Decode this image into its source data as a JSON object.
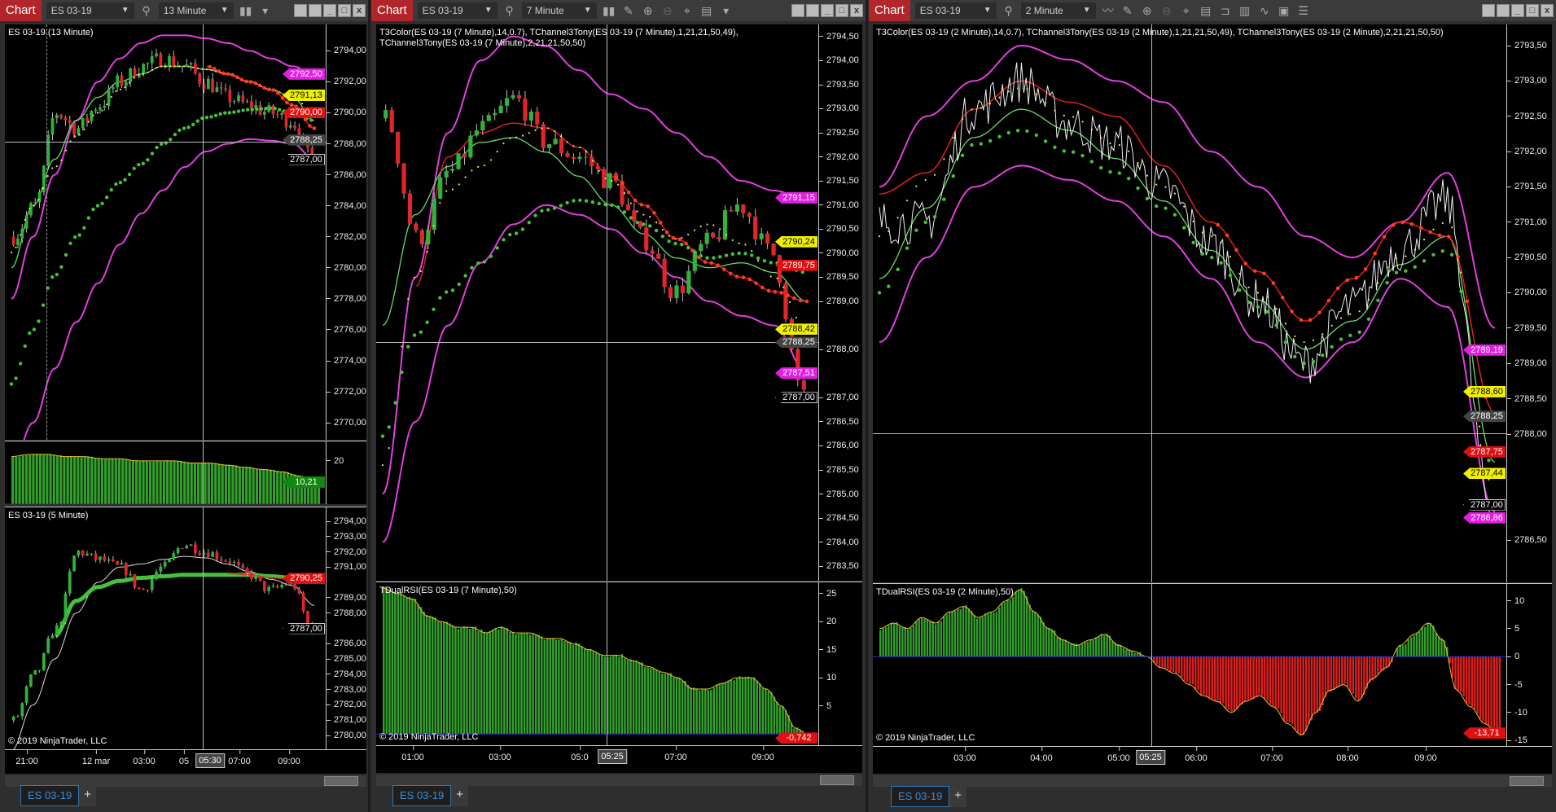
{
  "colors": {
    "up": "#2fb33a",
    "down": "#e0262b",
    "band": "#e040e0",
    "t3": "#e8e86a",
    "chan": "#44c23a",
    "redline": "#e02020",
    "ma": "#66dd66",
    "hist_pos": "#33a02c",
    "hist_neg": "#e02020",
    "chart_btn": "#b2252a"
  },
  "windows": [
    {
      "chart_label": "Chart",
      "instrument": "ES 03-19",
      "interval": "13 Minute",
      "icons": [
        "search-icon",
        "bar-style-icon",
        "dropdown-icon"
      ],
      "tab": "ES 03-19",
      "cursor_time": "05:30",
      "time_ticks": [
        "21:00",
        "12 mar",
        "03:00",
        "05",
        "07:00",
        "09:00"
      ]
    },
    {
      "chart_label": "Chart",
      "instrument": "ES 03-19",
      "interval": "7 Minute",
      "icons": [
        "search-icon",
        "bar-style-icon",
        "pencil-icon",
        "zoom-in-icon",
        "zoom-out-icon",
        "crosshair-icon",
        "properties-icon",
        "dropdown-icon"
      ],
      "tab": "ES 03-19",
      "cursor_time": "05:25",
      "time_ticks": [
        "01:00",
        "03:00",
        "05:0",
        "07:00",
        "09:00"
      ]
    },
    {
      "chart_label": "Chart",
      "instrument": "ES 03-19",
      "interval": "2 Minute",
      "icons": [
        "search-icon",
        "line-style-icon",
        "pencil-icon",
        "zoom-in-icon",
        "zoom-out-icon",
        "crosshair-icon",
        "properties-icon",
        "template-icon",
        "indicators-icon",
        "strategies-icon",
        "data-box-icon",
        "list-icon"
      ],
      "tab": "ES 03-19",
      "cursor_time": "05:25",
      "time_ticks": [
        "03:00",
        "04:00",
        "05:00",
        "06:00",
        "07:00",
        "08:00",
        "09:00"
      ]
    }
  ],
  "copyright": "© 2019 NinjaTrader, LLC",
  "chart_data": [
    {
      "id": "c1",
      "type": "candlestick",
      "title": "ES 03-19 (13 Minute)",
      "ylim": [
        2768.9,
        2795.7
      ],
      "yticks": [
        "2794,00",
        "2792,00",
        "2790,00",
        "2788,00",
        "2786,00",
        "2784,00",
        "2782,00",
        "2780,00",
        "2778,00",
        "2776,00",
        "2774,00",
        "2772,00",
        "2770,00"
      ],
      "tags": [
        {
          "v": 2792.5,
          "text": "2792,50",
          "bg": "#e020e0",
          "fg": "#fff"
        },
        {
          "v": 2791.13,
          "text": "2791,13",
          "bg": "#f0f000",
          "fg": "#000"
        },
        {
          "v": 2790.0,
          "text": "2790,00",
          "bg": "#e01010",
          "fg": "#fff"
        },
        {
          "v": 2788.25,
          "text": "2788,25",
          "bg": "#444",
          "fg": "#fff"
        },
        {
          "v": 2787.0,
          "text": "2787,00",
          "bg": "#000",
          "fg": "#fff"
        }
      ],
      "close": [
        2782,
        2784,
        2790,
        2789,
        2790.5,
        2792,
        2793,
        2793.5,
        2793,
        2792,
        2791,
        2790.5,
        2790,
        2789.5,
        2787
      ],
      "upper": [
        2778,
        2782,
        2786,
        2789.5,
        2792,
        2793.5,
        2794.5,
        2795,
        2795,
        2794.8,
        2794.5,
        2794,
        2793.5,
        2793,
        2792.5
      ],
      "lower": [
        2767,
        2770,
        2773.5,
        2776.5,
        2779,
        2781.5,
        2783.5,
        2785,
        2786.5,
        2787.5,
        2788,
        2788.3,
        2788.2,
        2788,
        2787
      ],
      "chan": [
        2772.5,
        2776,
        2779.5,
        2782,
        2784,
        2785.5,
        2786.7,
        2788,
        2789,
        2789.7,
        2790,
        2790.2,
        2790.3,
        2790,
        2789.5
      ],
      "t3": [
        2781,
        2784,
        2786.5,
        2788.5,
        2790,
        2791.5,
        2792.5,
        2793,
        2793,
        2792.8,
        2792.5,
        2792,
        2791.5,
        2791,
        2790
      ],
      "ma": [
        2780,
        2784,
        2787,
        2789.5,
        2791,
        2792,
        2792.5,
        2793,
        2793,
        2792.8,
        2792.5,
        2792,
        2791.5,
        2791,
        2789.5
      ],
      "red": [
        null,
        null,
        null,
        null,
        null,
        null,
        null,
        null,
        null,
        2793,
        2792.5,
        2792,
        2791.5,
        2790.5,
        2789
      ]
    },
    {
      "id": "i1",
      "type": "histogram",
      "ylim": [
        0,
        29
      ],
      "yticks": [
        "20"
      ],
      "tag": {
        "v": 10.21,
        "text": "10,21",
        "bg": "#118811",
        "fg": "#fff"
      },
      "values": [
        22,
        23,
        23,
        22,
        22,
        21,
        21,
        20,
        20,
        20,
        19,
        19,
        18,
        17,
        16,
        15,
        13,
        10
      ]
    },
    {
      "id": "c1b",
      "type": "candlestick",
      "title": "ES 03-19 (5 Minute)",
      "ylim": [
        2779.1,
        2794.9
      ],
      "yticks": [
        "2794,00",
        "2793,00",
        "2792,00",
        "2791,00",
        "2789,00",
        "2788,00",
        "2786,00",
        "2785,00",
        "2784,00",
        "2783,00",
        "2782,00",
        "2781,00",
        "2780,00"
      ],
      "tags": [
        {
          "v": 2790.25,
          "text": "2790,25",
          "bg": "#e01010",
          "fg": "#fff"
        },
        {
          "v": 2787.0,
          "text": "2787,00",
          "bg": "#000",
          "fg": "#fff"
        }
      ],
      "close": [
        2781,
        2784,
        2787,
        2792,
        2791.5,
        2791,
        2789.5,
        2791,
        2792.5,
        2792,
        2791.5,
        2790.5,
        2789.5,
        2790,
        2787
      ],
      "thick": [
        null,
        null,
        2786.5,
        2788.8,
        2789.7,
        2790.1,
        2790.3,
        2790.4,
        2790.5,
        2790.5,
        2790.5,
        2790.5,
        2790.4,
        2790.3,
        2790.1
      ],
      "thin": [
        2779,
        2782,
        2785,
        2788,
        2790,
        2791,
        2791.2,
        2791.5,
        2791.7,
        2791.6,
        2791.2,
        2790.7,
        2790.2,
        2789.8,
        2788.5
      ],
      "red": [
        null,
        null,
        null,
        null,
        null,
        null,
        null,
        null,
        null,
        null,
        2790.6,
        2790.5,
        2790.3,
        2790.2,
        2790.1
      ]
    },
    {
      "id": "c2",
      "type": "candlestick",
      "title": "T3Color(ES 03-19 (7 Minute),14,0.7), TChannel3Tony(ES 03-19 (7 Minute),1,21,21,50,49), TChannel3Tony(ES 03-19 (7 Minute),2,21,21,50,50)",
      "ylim": [
        2783.2,
        2794.75
      ],
      "yticks": [
        "2794,50",
        "2794,00",
        "2793,50",
        "2793,00",
        "2792,50",
        "2792,00",
        "2791,50",
        "2791,00",
        "2790,50",
        "2790,00",
        "2789,50",
        "2789,00",
        "2788,00",
        "2787,00",
        "2786,50",
        "2786,00",
        "2785,50",
        "2785,00",
        "2784,50",
        "2784,00",
        "2783,50"
      ],
      "tags": [
        {
          "v": 2791.15,
          "text": "2791,15",
          "bg": "#e020e0",
          "fg": "#fff"
        },
        {
          "v": 2790.24,
          "text": "2790,24",
          "bg": "#f0f000",
          "fg": "#000"
        },
        {
          "v": 2789.75,
          "text": "2789,75",
          "bg": "#e01010",
          "fg": "#fff"
        },
        {
          "v": 2788.42,
          "text": "2788,42",
          "bg": "#f0f000",
          "fg": "#000"
        },
        {
          "v": 2788.25,
          "text": "2788,25",
          "bg": "#444",
          "fg": "#fff"
        },
        {
          "v": 2787.51,
          "text": "2787,51",
          "bg": "#e020e0",
          "fg": "#fff"
        },
        {
          "v": 2787.0,
          "text": "2787,00",
          "bg": "#000",
          "fg": "#fff"
        }
      ],
      "close": [
        2792.8,
        2790.3,
        2791.7,
        2792.6,
        2793.2,
        2792.3,
        2792,
        2791.5,
        2790.3,
        2789.2,
        2790.2,
        2791,
        2790,
        2787
      ],
      "upper": [
        2785,
        2789.5,
        2792.5,
        2794,
        2794.5,
        2794.3,
        2793.8,
        2793.3,
        2793,
        2792.5,
        2792,
        2791.5,
        2791.3,
        2791.1
      ],
      "lower": [
        2784,
        2786.5,
        2788.5,
        2789.8,
        2790.6,
        2791,
        2790.8,
        2790.5,
        2790,
        2789.5,
        2789,
        2788.7,
        2788.5,
        2787.5
      ],
      "chan": [
        2786.2,
        2788.3,
        2789.2,
        2789.8,
        2790.4,
        2790.9,
        2791.1,
        2791,
        2790.6,
        2790.2,
        2789.9,
        2790,
        2789.8,
        2789.6
      ],
      "t3": [
        2785.6,
        2789.5,
        2791.3,
        2791.8,
        2792.4,
        2792.6,
        2792.2,
        2791.5,
        2790.8,
        2790.3,
        2790.6,
        2790.2,
        2789.5,
        2788.4
      ],
      "ma": [
        2788.5,
        2790.8,
        2791.8,
        2792.3,
        2792.4,
        2792.1,
        2791.6,
        2791,
        2790.4,
        2789.9,
        2789.7,
        2789.8,
        2789.6,
        2789
      ],
      "red": [
        null,
        2789.3,
        2792,
        2792.5,
        2792.7,
        2792.6,
        2792.2,
        2791.6,
        2791,
        2790.3,
        2789.8,
        2789.5,
        2789.2,
        2789
      ]
    },
    {
      "id": "i2",
      "type": "histogram",
      "title": "TDualRSI(ES 03-19 (7 Minute),50)",
      "ylim": [
        -2,
        27
      ],
      "yticks": [
        "25",
        "20",
        "15",
        "10",
        "5"
      ],
      "tag": {
        "v": -0.742,
        "text": "-0,742",
        "bg": "#e01010",
        "fg": "#fff"
      },
      "values": [
        26,
        25,
        24,
        21,
        20,
        19,
        19,
        18,
        19,
        18,
        18,
        17,
        17,
        16,
        15,
        14,
        14,
        13,
        12,
        11,
        10,
        8,
        8,
        9,
        10,
        10,
        8,
        5,
        1,
        -0.7
      ]
    },
    {
      "id": "c3",
      "type": "line",
      "title": "T3Color(ES 03-19 (2 Minute),14,0.7), TChannel3Tony(ES 03-19 (2 Minute),1,21,21,50,49), TChannel3Tony(ES 03-19 (2 Minute),2,21,21,50,50)",
      "ylim": [
        2785.9,
        2793.8
      ],
      "yticks": [
        "2793,50",
        "2793,00",
        "2792,50",
        "2792,00",
        "2791,50",
        "2791,00",
        "2790,50",
        "2790,00",
        "2789,50",
        "2789,00",
        "2788,50",
        "2788,00",
        "2786,50"
      ],
      "tags": [
        {
          "v": 2789.19,
          "text": "2789,19",
          "bg": "#e020e0",
          "fg": "#fff"
        },
        {
          "v": 2788.6,
          "text": "2788,60",
          "bg": "#f0f000",
          "fg": "#000"
        },
        {
          "v": 2788.25,
          "text": "2788,25",
          "bg": "#444",
          "fg": "#fff"
        },
        {
          "v": 2787.75,
          "text": "2787,75",
          "bg": "#e01010",
          "fg": "#fff"
        },
        {
          "v": 2787.44,
          "text": "2787,44",
          "bg": "#f0f000",
          "fg": "#000"
        },
        {
          "v": 2787.0,
          "text": "2787,00",
          "bg": "#000",
          "fg": "#fff"
        },
        {
          "v": 2786.86,
          "text": "2786,86",
          "bg": "#e020e0",
          "fg": "#fff"
        }
      ],
      "close": [
        2791,
        2791,
        2792.6,
        2793,
        2792.4,
        2792.1,
        2791.5,
        2790.7,
        2789.9,
        2789,
        2789.8,
        2790.6,
        2791.3,
        2786.9
      ],
      "upper": [
        2791.5,
        2792.5,
        2793,
        2793.5,
        2793.3,
        2793,
        2792.7,
        2792,
        2791.5,
        2790.8,
        2790.5,
        2791,
        2791.7,
        2789.5
      ],
      "lower": [
        2789.3,
        2790.5,
        2791.5,
        2791.8,
        2791.6,
        2791.3,
        2790.8,
        2790.2,
        2789.3,
        2788.8,
        2789.3,
        2790.2,
        2789.8,
        2786.9
      ],
      "chan": [
        2790,
        2791,
        2792.1,
        2792.3,
        2792,
        2791.7,
        2791.2,
        2790.5,
        2789.8,
        2789,
        2789.4,
        2790.3,
        2790.6,
        2787.5
      ],
      "t3": [
        2790.8,
        2791.6,
        2792.6,
        2792.9,
        2792.5,
        2792.1,
        2791.5,
        2790.8,
        2790,
        2789.3,
        2789.7,
        2790.5,
        2791,
        2787.2
      ],
      "ma": [
        2790.2,
        2791.2,
        2792.2,
        2792.6,
        2792.3,
        2791.9,
        2791.3,
        2790.6,
        2789.9,
        2789.2,
        2789.6,
        2790.4,
        2790.8,
        2787.6
      ],
      "red": [
        2791.4,
        2791.7,
        2792.6,
        2793,
        2792.7,
        2792.5,
        2791.8,
        2791,
        2790.3,
        2789.6,
        2790.2,
        2791,
        2790.8,
        2788.3
      ]
    },
    {
      "id": "i3",
      "type": "histogram",
      "title": "TDualRSI(ES 03-19 (2 Minute),50)",
      "ylim": [
        -16,
        13
      ],
      "yticks": [
        "10",
        "5",
        "0",
        "-5",
        "-10",
        "-15"
      ],
      "tag": {
        "v": -13.71,
        "text": "-13,71",
        "bg": "#e01010",
        "fg": "#fff"
      },
      "values": [
        5,
        6,
        5,
        7,
        6,
        8,
        9,
        7,
        8,
        10,
        12,
        8,
        5,
        3,
        2,
        3,
        4,
        2,
        1,
        0,
        -2,
        -3,
        -5,
        -7,
        -8,
        -10,
        -8,
        -7,
        -9,
        -12,
        -14,
        -10,
        -6,
        -5,
        -8,
        -4,
        -2,
        2,
        4,
        6,
        3,
        -6,
        -9,
        -12,
        -14
      ]
    }
  ]
}
